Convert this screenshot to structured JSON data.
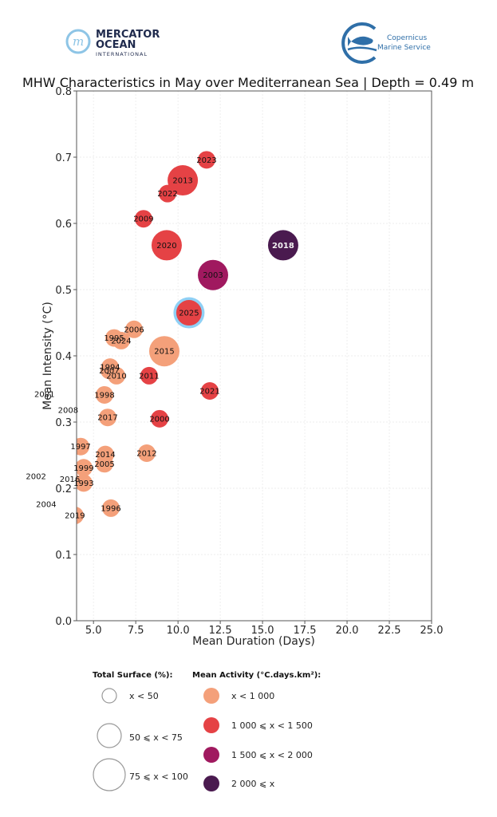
{
  "logos": {
    "mercator": {
      "line1": "MERCATOR",
      "line2": "OCEAN",
      "line3": "INTERNATIONAL",
      "color": "#1f2a4d",
      "accent": "#8ec5e6"
    },
    "copernicus": {
      "line1": "Copernicus",
      "line2": "Marine Service",
      "color": "#2f6fa8"
    }
  },
  "chart_data": {
    "type": "scatter",
    "title": "MHW Characteristics in May over Mediterranean Sea | Depth = 0.49 m",
    "xlabel": "Mean Duration (Days)",
    "ylabel": "Mean Intensity (°C)",
    "xlim": [
      4.0,
      25.0
    ],
    "ylim": [
      0.0,
      0.8
    ],
    "xticks": [
      "5.0",
      "7.5",
      "10.0",
      "12.5",
      "15.0",
      "17.5",
      "20.0",
      "22.5",
      "25.0"
    ],
    "xtick_values": [
      5.0,
      7.5,
      10.0,
      12.5,
      15.0,
      17.5,
      20.0,
      22.5,
      25.0
    ],
    "yticks": [
      "0.0",
      "0.1",
      "0.2",
      "0.3",
      "0.4",
      "0.5",
      "0.6",
      "0.7",
      "0.8"
    ],
    "ytick_values": [
      0.0,
      0.1,
      0.2,
      0.3,
      0.4,
      0.5,
      0.6,
      0.7,
      0.8
    ],
    "grid": true,
    "activity_colors": {
      "lt1000": "#f4a07a",
      "1000to1500": "#e54245",
      "1500to2000": "#a0195f",
      "ge2000": "#4a1a4f"
    },
    "highlight_ring_color": "#8fd0f5",
    "points": [
      {
        "year": "2023",
        "x": 11.69,
        "y": 0.696,
        "surface": "lt50",
        "activity": "1000to1500"
      },
      {
        "year": "2013",
        "x": 10.28,
        "y": 0.665,
        "surface": "75to100",
        "activity": "1000to1500"
      },
      {
        "year": "2022",
        "x": 9.38,
        "y": 0.645,
        "surface": "lt50",
        "activity": "1000to1500"
      },
      {
        "year": "2009",
        "x": 7.96,
        "y": 0.607,
        "surface": "lt50",
        "activity": "1000to1500"
      },
      {
        "year": "2020",
        "x": 9.33,
        "y": 0.567,
        "surface": "75to100",
        "activity": "1000to1500"
      },
      {
        "year": "2018",
        "x": 16.22,
        "y": 0.567,
        "surface": "75to100",
        "activity": "ge2000"
      },
      {
        "year": "2003",
        "x": 12.07,
        "y": 0.522,
        "surface": "75to100",
        "activity": "1500to2000"
      },
      {
        "year": "2025",
        "x": 10.65,
        "y": 0.465,
        "surface": "75to100",
        "activity": "1000to1500",
        "highlight": true
      },
      {
        "year": "2006",
        "x": 7.4,
        "y": 0.44,
        "surface": "lt50",
        "activity": "lt1000"
      },
      {
        "year": "1995",
        "x": 6.22,
        "y": 0.427,
        "surface": "lt50",
        "activity": "lt1000"
      },
      {
        "year": "2024",
        "x": 6.64,
        "y": 0.423,
        "surface": "lt50",
        "activity": "lt1000"
      },
      {
        "year": "2015",
        "x": 9.19,
        "y": 0.407,
        "surface": "75to100",
        "activity": "lt1000"
      },
      {
        "year": "1994",
        "x": 5.98,
        "y": 0.383,
        "surface": "lt50",
        "activity": "lt1000"
      },
      {
        "year": "2007",
        "x": 5.93,
        "y": 0.378,
        "surface": "lt50",
        "activity": "lt1000"
      },
      {
        "year": "2010",
        "x": 6.36,
        "y": 0.37,
        "surface": "lt50",
        "activity": "lt1000"
      },
      {
        "year": "2011",
        "x": 8.29,
        "y": 0.37,
        "surface": "lt50",
        "activity": "1000to1500"
      },
      {
        "year": "2021",
        "x": 11.88,
        "y": 0.347,
        "surface": "lt50",
        "activity": "1000to1500"
      },
      {
        "year": "1998",
        "x": 5.65,
        "y": 0.341,
        "surface": "lt50",
        "activity": "lt1000"
      },
      {
        "year": "2001",
        "x": 2.1,
        "y": 0.342,
        "surface": "lt50",
        "activity": "lt1000"
      },
      {
        "year": "2008",
        "x": 3.5,
        "y": 0.318,
        "surface": "lt50",
        "activity": "lt1000"
      },
      {
        "year": "2017",
        "x": 5.84,
        "y": 0.307,
        "surface": "lt50",
        "activity": "lt1000"
      },
      {
        "year": "2000",
        "x": 8.91,
        "y": 0.305,
        "surface": "lt50",
        "activity": "1000to1500"
      },
      {
        "year": "1997",
        "x": 4.24,
        "y": 0.263,
        "surface": "lt50",
        "activity": "lt1000"
      },
      {
        "year": "2012",
        "x": 8.15,
        "y": 0.253,
        "surface": "lt50",
        "activity": "lt1000"
      },
      {
        "year": "2014",
        "x": 5.7,
        "y": 0.251,
        "surface": "lt50",
        "activity": "lt1000"
      },
      {
        "year": "2005",
        "x": 5.65,
        "y": 0.237,
        "surface": "lt50",
        "activity": "lt1000"
      },
      {
        "year": "1999",
        "x": 4.42,
        "y": 0.231,
        "surface": "lt50",
        "activity": "lt1000"
      },
      {
        "year": "2002",
        "x": 1.6,
        "y": 0.218,
        "surface": "lt50",
        "activity": "lt1000"
      },
      {
        "year": "2016",
        "x": 3.6,
        "y": 0.214,
        "surface": "lt50",
        "activity": "lt1000"
      },
      {
        "year": "1993",
        "x": 4.42,
        "y": 0.208,
        "surface": "lt50",
        "activity": "lt1000"
      },
      {
        "year": "2004",
        "x": 2.2,
        "y": 0.176,
        "surface": "lt50",
        "activity": "lt1000"
      },
      {
        "year": "1996",
        "x": 6.03,
        "y": 0.17,
        "surface": "lt50",
        "activity": "lt1000"
      },
      {
        "year": "2019",
        "x": 3.9,
        "y": 0.159,
        "surface": "lt50",
        "activity": "lt1000"
      }
    ],
    "legend": {
      "surface_title": "Total Surface (%):",
      "surface_items": [
        {
          "key": "lt50",
          "label": "x < 50"
        },
        {
          "key": "50to75",
          "label": "50 ⩽ x < 75"
        },
        {
          "key": "75to100",
          "label": "75 ⩽ x < 100"
        }
      ],
      "activity_title": "Mean Activity (°C.days.km²):",
      "activity_items": [
        {
          "key": "lt1000",
          "label": "x < 1 000"
        },
        {
          "key": "1000to1500",
          "label": "1 000 ⩽ x < 1 500"
        },
        {
          "key": "1500to2000",
          "label": "1 500 ⩽ x < 2 000"
        },
        {
          "key": "ge2000",
          "label": "2 000 ⩽ x"
        }
      ],
      "placement": "bottom"
    }
  }
}
